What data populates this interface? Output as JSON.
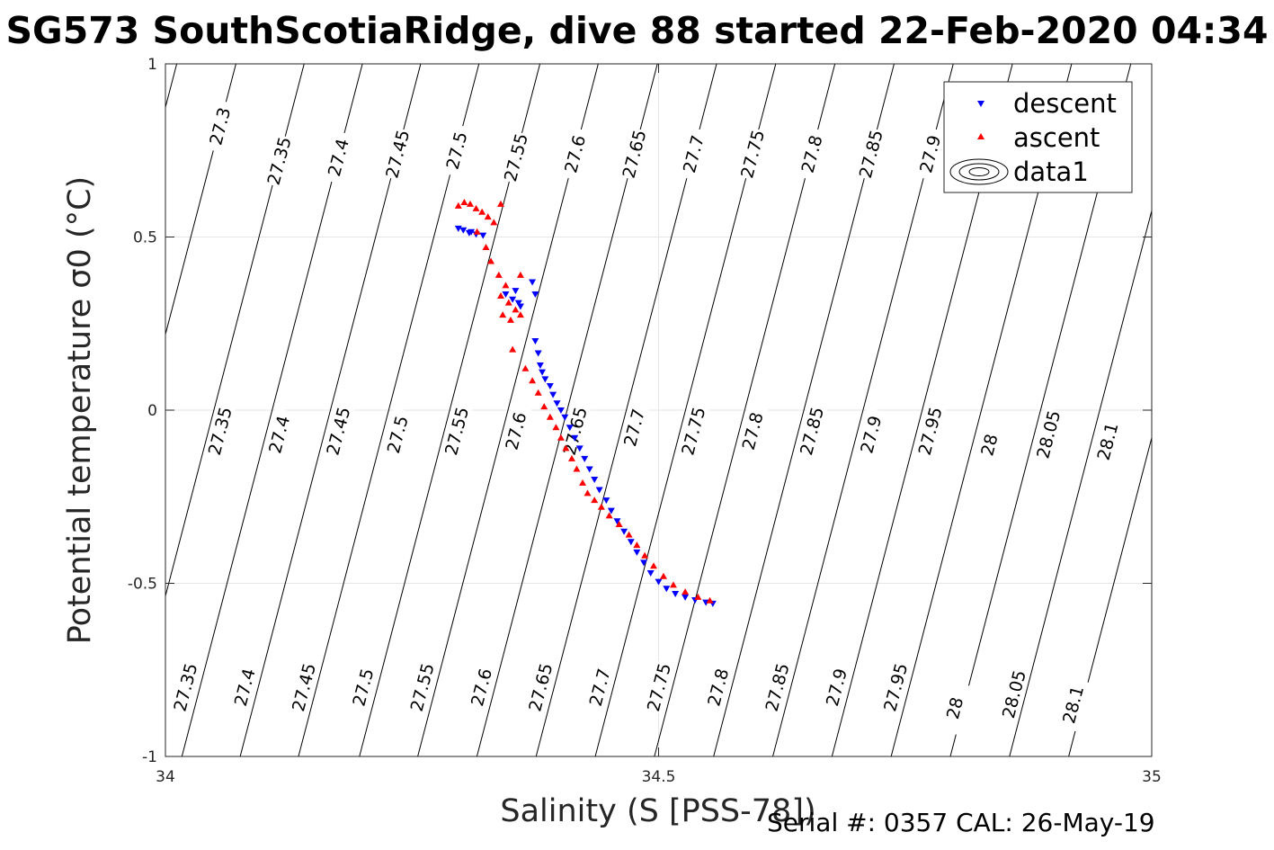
{
  "chart_data": {
    "type": "scatter",
    "title": "SG573 SouthScotiaRidge, dive 88 started 22-Feb-2020 04:34",
    "xlabel": "Salinity (S [PSS-78])",
    "ylabel": "Potential temperature σ0 (°C)",
    "xlim": [
      34,
      35
    ],
    "ylim": [
      -1,
      1
    ],
    "x_ticks": [
      "34",
      "34.5",
      "35"
    ],
    "y_ticks": [
      "-1",
      "-0.5",
      "0",
      "0.5",
      "1"
    ],
    "grid": true,
    "legend_position": "top-right",
    "footer": "Serial #: 0357  CAL: 26-May-19",
    "series": [
      {
        "name": "descent",
        "color": "#0000ff",
        "marker": "triangle-down",
        "points": [
          [
            34.297,
            0.525
          ],
          [
            34.302,
            0.52
          ],
          [
            34.308,
            0.512
          ],
          [
            34.315,
            0.508
          ],
          [
            34.322,
            0.505
          ],
          [
            34.31,
            0.515
          ],
          [
            34.345,
            0.335
          ],
          [
            34.352,
            0.32
          ],
          [
            34.358,
            0.31
          ],
          [
            34.36,
            0.3
          ],
          [
            34.355,
            0.345
          ],
          [
            34.372,
            0.37
          ],
          [
            34.375,
            0.335
          ],
          [
            34.375,
            0.2
          ],
          [
            34.378,
            0.165
          ],
          [
            34.38,
            0.13
          ],
          [
            34.382,
            0.11
          ],
          [
            34.385,
            0.09
          ],
          [
            34.39,
            0.07
          ],
          [
            34.393,
            0.045
          ],
          [
            34.397,
            0.02
          ],
          [
            34.401,
            0.0
          ],
          [
            34.405,
            -0.02
          ],
          [
            34.41,
            -0.05
          ],
          [
            34.415,
            -0.08
          ],
          [
            34.42,
            -0.11
          ],
          [
            34.425,
            -0.14
          ],
          [
            34.43,
            -0.17
          ],
          [
            34.435,
            -0.2
          ],
          [
            34.44,
            -0.23
          ],
          [
            34.447,
            -0.26
          ],
          [
            34.452,
            -0.29
          ],
          [
            34.458,
            -0.32
          ],
          [
            34.465,
            -0.35
          ],
          [
            34.472,
            -0.38
          ],
          [
            34.478,
            -0.41
          ],
          [
            34.485,
            -0.44
          ],
          [
            34.492,
            -0.47
          ],
          [
            34.5,
            -0.495
          ],
          [
            34.508,
            -0.515
          ],
          [
            34.517,
            -0.53
          ],
          [
            34.527,
            -0.54
          ],
          [
            34.537,
            -0.548
          ],
          [
            34.548,
            -0.555
          ],
          [
            34.555,
            -0.558
          ]
        ]
      },
      {
        "name": "ascent",
        "color": "#ff0000",
        "marker": "triangle-up",
        "points": [
          [
            34.297,
            0.59
          ],
          [
            34.303,
            0.6
          ],
          [
            34.309,
            0.595
          ],
          [
            34.315,
            0.582
          ],
          [
            34.321,
            0.572
          ],
          [
            34.327,
            0.558
          ],
          [
            34.333,
            0.542
          ],
          [
            34.34,
            0.595
          ],
          [
            34.316,
            0.515
          ],
          [
            34.325,
            0.47
          ],
          [
            34.33,
            0.43
          ],
          [
            34.338,
            0.39
          ],
          [
            34.345,
            0.36
          ],
          [
            34.36,
            0.39
          ],
          [
            34.34,
            0.33
          ],
          [
            34.348,
            0.31
          ],
          [
            34.355,
            0.29
          ],
          [
            34.342,
            0.275
          ],
          [
            34.35,
            0.26
          ],
          [
            34.36,
            0.275
          ],
          [
            34.352,
            0.175
          ],
          [
            34.365,
            0.12
          ],
          [
            34.372,
            0.085
          ],
          [
            34.378,
            0.05
          ],
          [
            34.384,
            0.01
          ],
          [
            34.39,
            -0.02
          ],
          [
            34.396,
            -0.05
          ],
          [
            34.401,
            -0.08
          ],
          [
            34.406,
            -0.11
          ],
          [
            34.412,
            -0.14
          ],
          [
            34.417,
            -0.17
          ],
          [
            34.423,
            -0.21
          ],
          [
            34.428,
            -0.24
          ],
          [
            34.435,
            -0.26
          ],
          [
            34.442,
            -0.28
          ],
          [
            34.45,
            -0.305
          ],
          [
            34.46,
            -0.33
          ],
          [
            34.47,
            -0.36
          ],
          [
            34.478,
            -0.39
          ],
          [
            34.486,
            -0.42
          ],
          [
            34.495,
            -0.45
          ],
          [
            34.505,
            -0.48
          ],
          [
            34.515,
            -0.505
          ],
          [
            34.527,
            -0.525
          ],
          [
            34.54,
            -0.54
          ],
          [
            34.552,
            -0.55
          ]
        ]
      }
    ],
    "contour_legend": "data1",
    "isopycnals": [
      {
        "label": "27.3",
        "s": 34.055,
        "t": 0.82
      },
      {
        "label": "27.35",
        "s": 34.115,
        "t": 0.72
      },
      {
        "label": "27.4",
        "s": 34.175,
        "t": 0.73
      },
      {
        "label": "27.45",
        "s": 34.235,
        "t": 0.74
      },
      {
        "label": "27.5",
        "s": 34.295,
        "t": 0.75
      },
      {
        "label": "27.55",
        "s": 34.355,
        "t": 0.73
      },
      {
        "label": "27.6",
        "s": 34.415,
        "t": 0.74
      },
      {
        "label": "27.65",
        "s": 34.475,
        "t": 0.74
      },
      {
        "label": "27.7",
        "s": 34.535,
        "t": 0.74
      },
      {
        "label": "27.75",
        "s": 34.595,
        "t": 0.74
      },
      {
        "label": "27.8",
        "s": 34.655,
        "t": 0.74
      },
      {
        "label": "27.85",
        "s": 34.715,
        "t": 0.74
      },
      {
        "label": "27.9",
        "s": 34.775,
        "t": 0.74
      },
      {
        "label": "27.95",
        "s": 34.835,
        "t": 0.74
      },
      {
        "label": "28",
        "s": 34.895,
        "t": 0.74
      },
      {
        "label": "28.05",
        "s": 34.955,
        "t": 0.74
      },
      {
        "label": "27.35",
        "s": 34.055,
        "t": -0.06
      },
      {
        "label": "27.4",
        "s": 34.115,
        "t": -0.07
      },
      {
        "label": "27.45",
        "s": 34.175,
        "t": -0.06
      },
      {
        "label": "27.5",
        "s": 34.235,
        "t": -0.07
      },
      {
        "label": "27.55",
        "s": 34.295,
        "t": -0.06
      },
      {
        "label": "27.6",
        "s": 34.355,
        "t": -0.06
      },
      {
        "label": "27.65",
        "s": 34.415,
        "t": -0.06
      },
      {
        "label": "27.7",
        "s": 34.475,
        "t": -0.05
      },
      {
        "label": "27.75",
        "s": 34.535,
        "t": -0.06
      },
      {
        "label": "27.8",
        "s": 34.595,
        "t": -0.06
      },
      {
        "label": "27.85",
        "s": 34.655,
        "t": -0.06
      },
      {
        "label": "27.9",
        "s": 34.715,
        "t": -0.07
      },
      {
        "label": "27.95",
        "s": 34.775,
        "t": -0.06
      },
      {
        "label": "28",
        "s": 34.835,
        "t": -0.1
      },
      {
        "label": "28.05",
        "s": 34.895,
        "t": -0.07
      },
      {
        "label": "28.1",
        "s": 34.955,
        "t": -0.09
      },
      {
        "label": "27.35",
        "s": 34.02,
        "t": -0.8
      },
      {
        "label": "27.4",
        "s": 34.08,
        "t": -0.8
      },
      {
        "label": "27.45",
        "s": 34.14,
        "t": -0.8
      },
      {
        "label": "27.5",
        "s": 34.2,
        "t": -0.8
      },
      {
        "label": "27.55",
        "s": 34.26,
        "t": -0.8
      },
      {
        "label": "27.6",
        "s": 34.32,
        "t": -0.8
      },
      {
        "label": "27.65",
        "s": 34.38,
        "t": -0.8
      },
      {
        "label": "27.7",
        "s": 34.44,
        "t": -0.8
      },
      {
        "label": "27.75",
        "s": 34.5,
        "t": -0.8
      },
      {
        "label": "27.8",
        "s": 34.56,
        "t": -0.8
      },
      {
        "label": "27.85",
        "s": 34.62,
        "t": -0.8
      },
      {
        "label": "27.9",
        "s": 34.68,
        "t": -0.8
      },
      {
        "label": "27.95",
        "s": 34.74,
        "t": -0.8
      },
      {
        "label": "28",
        "s": 34.8,
        "t": -0.86
      },
      {
        "label": "28.05",
        "s": 34.86,
        "t": -0.82
      },
      {
        "label": "28.1",
        "s": 34.92,
        "t": -0.85
      }
    ]
  }
}
